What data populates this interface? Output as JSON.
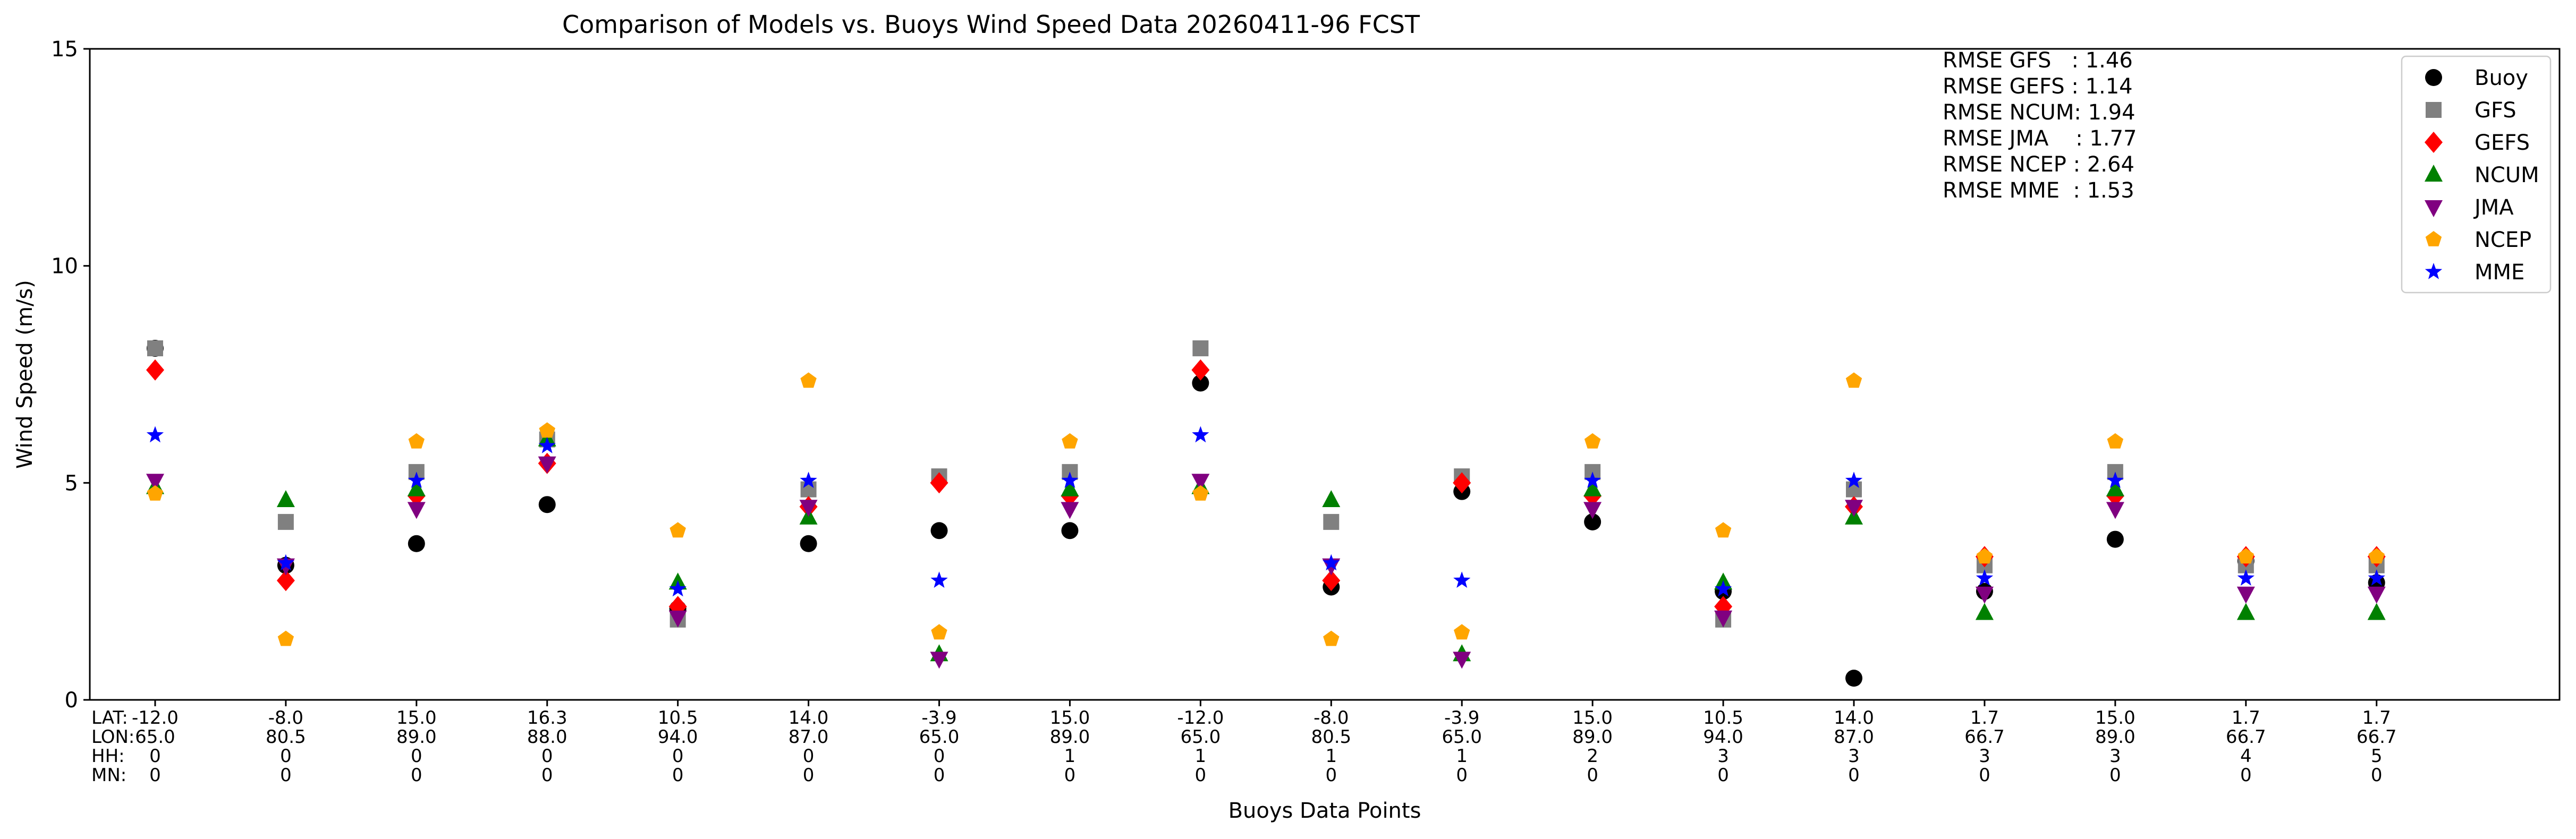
{
  "chart_data": {
    "type": "scatter",
    "title": "Comparison of Models vs. Buoys Wind Speed Data 20260411-96 FCST",
    "xlabel": "Buoys Data Points",
    "ylabel": "Wind Speed (m/s)",
    "ylim": [
      0,
      15
    ],
    "yticks": [
      0,
      5,
      10,
      15
    ],
    "xlim": [
      -0.5,
      18.4
    ],
    "row_labels": [
      "LAT:",
      "LON:",
      "HH:",
      "MN:"
    ],
    "x_tick_rows": [
      {
        "lat": "-12.0",
        "lon": "65.0",
        "hh": "0",
        "mn": "0"
      },
      {
        "lat": "-8.0",
        "lon": "80.5",
        "hh": "0",
        "mn": "0"
      },
      {
        "lat": "15.0",
        "lon": "89.0",
        "hh": "0",
        "mn": "0"
      },
      {
        "lat": "16.3",
        "lon": "88.0",
        "hh": "0",
        "mn": "0"
      },
      {
        "lat": "10.5",
        "lon": "94.0",
        "hh": "0",
        "mn": "0"
      },
      {
        "lat": "14.0",
        "lon": "87.0",
        "hh": "0",
        "mn": "0"
      },
      {
        "lat": "-3.9",
        "lon": "65.0",
        "hh": "0",
        "mn": "0"
      },
      {
        "lat": "15.0",
        "lon": "89.0",
        "hh": "1",
        "mn": "0"
      },
      {
        "lat": "-12.0",
        "lon": "65.0",
        "hh": "1",
        "mn": "0"
      },
      {
        "lat": "-8.0",
        "lon": "80.5",
        "hh": "1",
        "mn": "0"
      },
      {
        "lat": "-3.9",
        "lon": "65.0",
        "hh": "1",
        "mn": "0"
      },
      {
        "lat": "15.0",
        "lon": "89.0",
        "hh": "2",
        "mn": "0"
      },
      {
        "lat": "10.5",
        "lon": "94.0",
        "hh": "3",
        "mn": "0"
      },
      {
        "lat": "14.0",
        "lon": "87.0",
        "hh": "3",
        "mn": "0"
      },
      {
        "lat": "1.7",
        "lon": "66.7",
        "hh": "3",
        "mn": "0"
      },
      {
        "lat": "15.0",
        "lon": "89.0",
        "hh": "3",
        "mn": "0"
      },
      {
        "lat": "1.7",
        "lon": "66.7",
        "hh": "4",
        "mn": "0"
      },
      {
        "lat": "1.7",
        "lon": "66.7",
        "hh": "5",
        "mn": "0"
      }
    ],
    "series": [
      {
        "name": "Buoy",
        "marker": "circle",
        "color": "#000000",
        "values": [
          8.1,
          3.1,
          3.6,
          4.5,
          2.1,
          3.6,
          3.9,
          3.9,
          7.3,
          2.6,
          4.8,
          4.1,
          2.5,
          0.5,
          2.5,
          3.7,
          3.2,
          2.7
        ]
      },
      {
        "name": "GFS",
        "marker": "square",
        "color": "#808080",
        "values": [
          8.1,
          4.1,
          5.25,
          6.0,
          1.85,
          4.85,
          5.15,
          5.25,
          8.1,
          4.1,
          5.15,
          5.25,
          1.85,
          4.85,
          3.1,
          5.25,
          3.1,
          3.1
        ]
      },
      {
        "name": "GEFS",
        "marker": "diamond",
        "color": "#ff0000",
        "values": [
          7.6,
          2.75,
          4.7,
          5.45,
          2.15,
          4.45,
          5.0,
          4.7,
          7.6,
          2.75,
          5.0,
          4.7,
          2.15,
          4.45,
          3.3,
          4.7,
          3.3,
          3.3
        ]
      },
      {
        "name": "NCUM",
        "marker": "triangle-up",
        "color": "#008000",
        "values": [
          4.9,
          4.6,
          4.85,
          6.0,
          2.7,
          4.2,
          1.05,
          4.85,
          4.9,
          4.6,
          1.05,
          4.85,
          2.7,
          4.2,
          2.0,
          4.85,
          2.0,
          2.0
        ]
      },
      {
        "name": "JMA",
        "marker": "triangle-down",
        "color": "#800080",
        "values": [
          5.05,
          3.1,
          4.4,
          5.45,
          1.9,
          4.45,
          0.95,
          4.4,
          5.05,
          3.1,
          0.95,
          4.4,
          1.9,
          4.45,
          2.45,
          4.4,
          2.45,
          2.45
        ]
      },
      {
        "name": "NCEP",
        "marker": "pentagon",
        "color": "#ffa500",
        "values": [
          4.75,
          1.4,
          5.95,
          6.2,
          3.9,
          7.35,
          1.55,
          5.95,
          4.75,
          1.4,
          1.55,
          5.95,
          3.9,
          7.35,
          3.3,
          5.95,
          3.3,
          3.3
        ]
      },
      {
        "name": "MME",
        "marker": "star",
        "color": "#0000ff",
        "values": [
          6.1,
          3.15,
          5.05,
          5.85,
          2.55,
          5.05,
          2.75,
          5.05,
          6.1,
          3.15,
          2.75,
          5.05,
          2.55,
          5.05,
          2.8,
          5.05,
          2.8,
          2.8
        ]
      }
    ],
    "annotations": [
      "RMSE GFS   : 1.46",
      "RMSE GEFS : 1.14",
      "RMSE NCUM: 1.94",
      "RMSE JMA    : 1.77",
      "RMSE NCEP : 2.64",
      "RMSE MME  : 1.53"
    ],
    "legend_position": "top-right",
    "grid": false
  }
}
